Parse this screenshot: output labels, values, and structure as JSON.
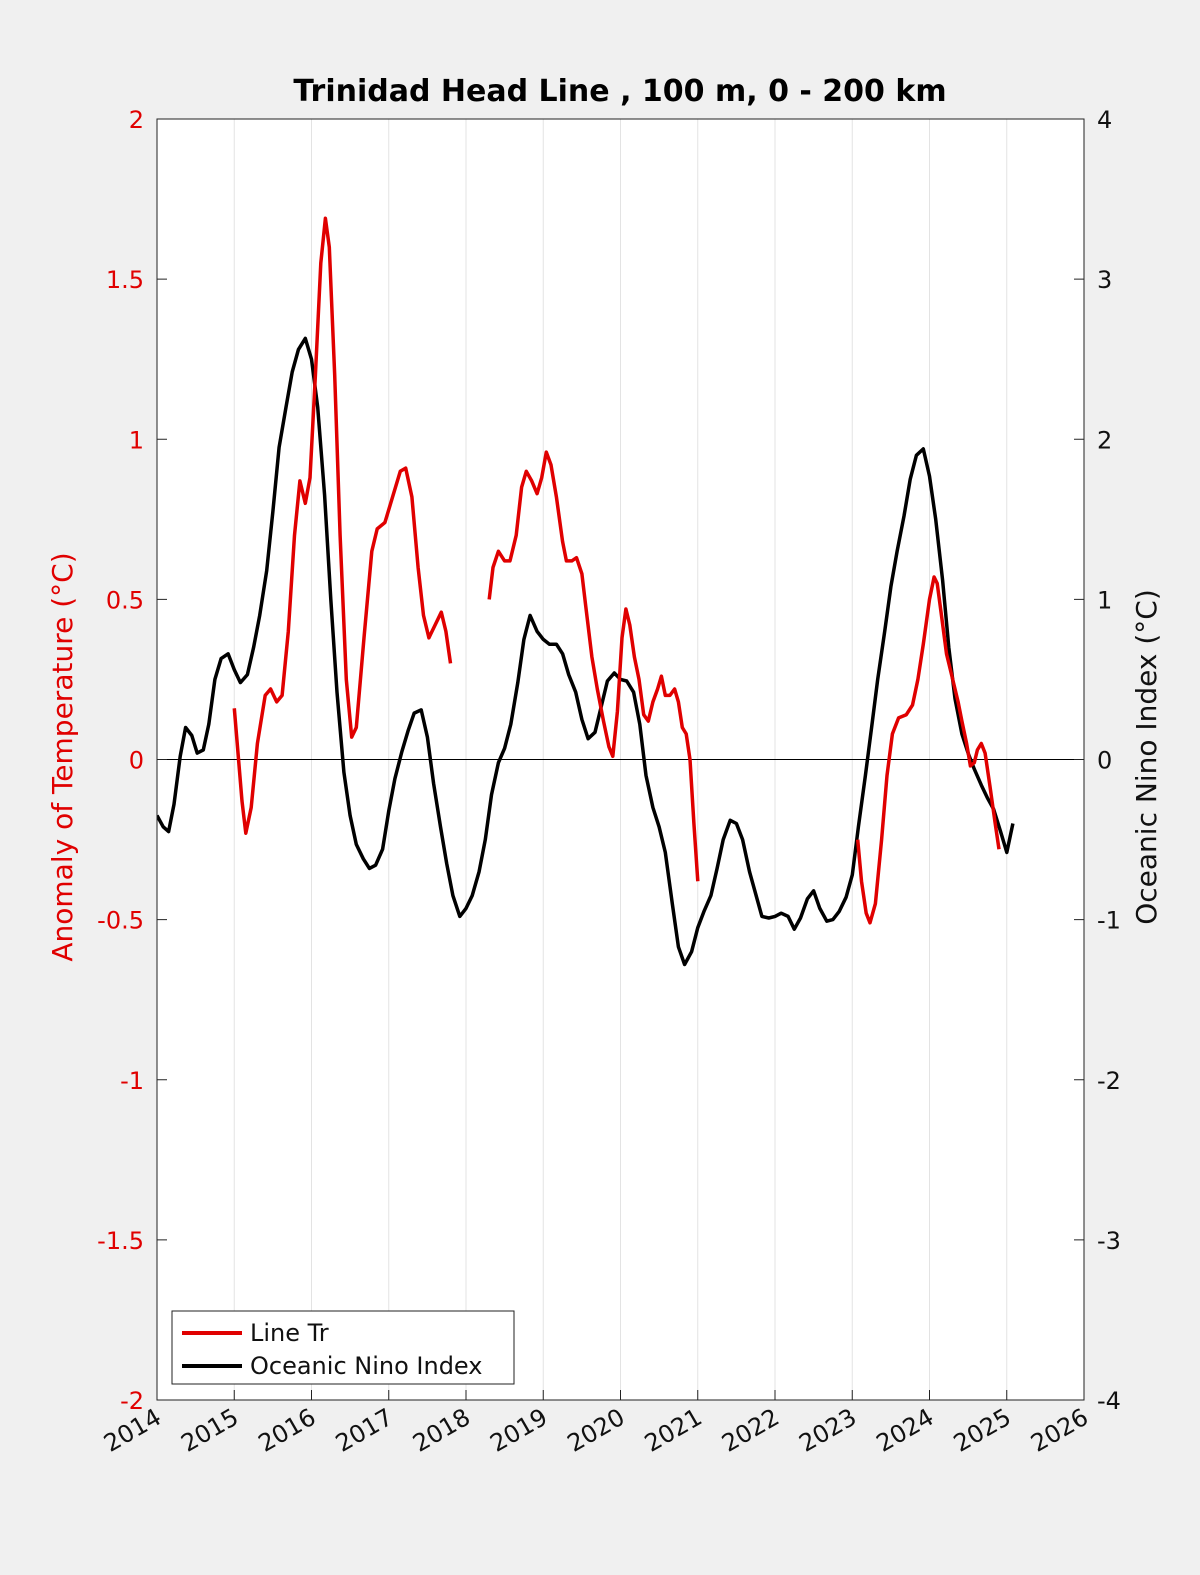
{
  "chart_data": {
    "type": "line",
    "title": "Trinidad Head Line , 100 m, 0 - 200 km",
    "xlabel": "",
    "ylabel_left": "Anomaly of Temperature (°C)",
    "ylabel_right": "Oceanic Nino Index (°C)",
    "xlim": [
      2014,
      2026
    ],
    "ylim_left": [
      -2,
      2
    ],
    "ylim_right": [
      -4,
      4
    ],
    "x_ticks": [
      "2014",
      "2015",
      "2016",
      "2017",
      "2018",
      "2019",
      "2020",
      "2021",
      "2022",
      "2023",
      "2024",
      "2025",
      "2026"
    ],
    "y_ticks_left": [
      "-2",
      "-1.5",
      "-1",
      "-0.5",
      "0",
      "0.5",
      "1",
      "1.5",
      "2"
    ],
    "y_ticks_right": [
      "-4",
      "-3",
      "-2",
      "-1",
      "0",
      "1",
      "2",
      "3",
      "4"
    ],
    "grid": "vertical",
    "zero_line": true,
    "legend_position": "bottom-left",
    "colors": {
      "line_tr": "#e00000",
      "oni": "#000000",
      "left_axis": "#e00000"
    },
    "series": [
      {
        "name": "Line Tr",
        "axis": "left",
        "color": "#e00000",
        "segments": [
          [
            [
              2015.0,
              0.16
            ],
            [
              2015.1,
              -0.13
            ],
            [
              2015.15,
              -0.23
            ],
            [
              2015.22,
              -0.15
            ],
            [
              2015.3,
              0.05
            ],
            [
              2015.4,
              0.2
            ],
            [
              2015.47,
              0.22
            ],
            [
              2015.55,
              0.18
            ],
            [
              2015.62,
              0.2
            ],
            [
              2015.7,
              0.4
            ],
            [
              2015.78,
              0.7
            ],
            [
              2015.85,
              0.87
            ],
            [
              2015.92,
              0.8
            ],
            [
              2015.98,
              0.88
            ],
            [
              2016.05,
              1.2
            ],
            [
              2016.12,
              1.55
            ],
            [
              2016.18,
              1.69
            ],
            [
              2016.23,
              1.6
            ],
            [
              2016.3,
              1.2
            ],
            [
              2016.37,
              0.7
            ],
            [
              2016.45,
              0.25
            ],
            [
              2016.52,
              0.07
            ],
            [
              2016.58,
              0.1
            ],
            [
              2016.68,
              0.38
            ],
            [
              2016.78,
              0.65
            ],
            [
              2016.85,
              0.72
            ],
            [
              2016.95,
              0.74
            ],
            [
              2017.05,
              0.82
            ],
            [
              2017.15,
              0.9
            ],
            [
              2017.22,
              0.91
            ],
            [
              2017.3,
              0.82
            ],
            [
              2017.38,
              0.6
            ],
            [
              2017.45,
              0.45
            ],
            [
              2017.52,
              0.38
            ],
            [
              2017.6,
              0.42
            ],
            [
              2017.68,
              0.46
            ],
            [
              2017.74,
              0.4
            ],
            [
              2017.8,
              0.3
            ]
          ],
          [
            [
              2018.3,
              0.5
            ],
            [
              2018.35,
              0.6
            ],
            [
              2018.42,
              0.65
            ],
            [
              2018.5,
              0.62
            ],
            [
              2018.57,
              0.62
            ],
            [
              2018.65,
              0.7
            ],
            [
              2018.72,
              0.85
            ],
            [
              2018.78,
              0.9
            ],
            [
              2018.85,
              0.87
            ],
            [
              2018.92,
              0.83
            ],
            [
              2018.98,
              0.88
            ],
            [
              2019.04,
              0.96
            ],
            [
              2019.1,
              0.92
            ],
            [
              2019.17,
              0.82
            ],
            [
              2019.25,
              0.68
            ],
            [
              2019.3,
              0.62
            ],
            [
              2019.37,
              0.62
            ],
            [
              2019.43,
              0.63
            ],
            [
              2019.5,
              0.58
            ],
            [
              2019.55,
              0.48
            ],
            [
              2019.63,
              0.32
            ],
            [
              2019.7,
              0.22
            ],
            [
              2019.78,
              0.12
            ],
            [
              2019.85,
              0.04
            ],
            [
              2019.9,
              0.01
            ],
            [
              2019.96,
              0.15
            ],
            [
              2020.02,
              0.38
            ],
            [
              2020.07,
              0.47
            ],
            [
              2020.12,
              0.42
            ],
            [
              2020.18,
              0.32
            ],
            [
              2020.24,
              0.25
            ],
            [
              2020.3,
              0.14
            ],
            [
              2020.36,
              0.12
            ],
            [
              2020.42,
              0.18
            ],
            [
              2020.48,
              0.22
            ],
            [
              2020.53,
              0.26
            ],
            [
              2020.58,
              0.2
            ],
            [
              2020.64,
              0.2
            ],
            [
              2020.7,
              0.22
            ],
            [
              2020.75,
              0.18
            ],
            [
              2020.8,
              0.1
            ],
            [
              2020.85,
              0.08
            ],
            [
              2020.9,
              0.0
            ],
            [
              2020.95,
              -0.2
            ],
            [
              2021.0,
              -0.38
            ]
          ],
          [
            [
              2023.07,
              -0.25
            ],
            [
              2023.12,
              -0.38
            ],
            [
              2023.18,
              -0.48
            ],
            [
              2023.23,
              -0.51
            ],
            [
              2023.3,
              -0.45
            ],
            [
              2023.38,
              -0.25
            ],
            [
              2023.45,
              -0.05
            ],
            [
              2023.52,
              0.08
            ],
            [
              2023.6,
              0.13
            ],
            [
              2023.7,
              0.14
            ],
            [
              2023.78,
              0.17
            ],
            [
              2023.85,
              0.25
            ],
            [
              2023.92,
              0.36
            ],
            [
              2024.0,
              0.5
            ],
            [
              2024.06,
              0.57
            ],
            [
              2024.1,
              0.55
            ],
            [
              2024.16,
              0.44
            ],
            [
              2024.22,
              0.33
            ],
            [
              2024.3,
              0.25
            ],
            [
              2024.37,
              0.18
            ],
            [
              2024.42,
              0.12
            ],
            [
              2024.48,
              0.05
            ],
            [
              2024.53,
              -0.02
            ],
            [
              2024.58,
              -0.01
            ],
            [
              2024.62,
              0.03
            ],
            [
              2024.67,
              0.05
            ],
            [
              2024.72,
              0.02
            ],
            [
              2024.78,
              -0.08
            ],
            [
              2024.85,
              -0.2
            ],
            [
              2024.9,
              -0.28
            ]
          ]
        ]
      },
      {
        "name": "Oceanic Nino Index",
        "axis": "right",
        "color": "#000000",
        "points": [
          [
            2014.0,
            -0.35
          ],
          [
            2014.08,
            -0.42
          ],
          [
            2014.15,
            -0.45
          ],
          [
            2014.22,
            -0.28
          ],
          [
            2014.3,
            0.02
          ],
          [
            2014.37,
            0.2
          ],
          [
            2014.45,
            0.15
          ],
          [
            2014.52,
            0.04
          ],
          [
            2014.6,
            0.06
          ],
          [
            2014.67,
            0.22
          ],
          [
            2014.75,
            0.5
          ],
          [
            2014.83,
            0.63
          ],
          [
            2014.92,
            0.66
          ],
          [
            2015.0,
            0.56
          ],
          [
            2015.08,
            0.48
          ],
          [
            2015.17,
            0.53
          ],
          [
            2015.25,
            0.7
          ],
          [
            2015.33,
            0.9
          ],
          [
            2015.42,
            1.18
          ],
          [
            2015.5,
            1.55
          ],
          [
            2015.58,
            1.95
          ],
          [
            2015.67,
            2.2
          ],
          [
            2015.75,
            2.42
          ],
          [
            2015.83,
            2.56
          ],
          [
            2015.92,
            2.63
          ],
          [
            2016.0,
            2.5
          ],
          [
            2016.08,
            2.2
          ],
          [
            2016.17,
            1.65
          ],
          [
            2016.25,
            1.0
          ],
          [
            2016.33,
            0.42
          ],
          [
            2016.42,
            -0.08
          ],
          [
            2016.5,
            -0.35
          ],
          [
            2016.58,
            -0.53
          ],
          [
            2016.67,
            -0.62
          ],
          [
            2016.75,
            -0.68
          ],
          [
            2016.83,
            -0.66
          ],
          [
            2016.92,
            -0.56
          ],
          [
            2017.0,
            -0.32
          ],
          [
            2017.08,
            -0.12
          ],
          [
            2017.17,
            0.05
          ],
          [
            2017.25,
            0.18
          ],
          [
            2017.33,
            0.29
          ],
          [
            2017.42,
            0.31
          ],
          [
            2017.5,
            0.14
          ],
          [
            2017.58,
            -0.15
          ],
          [
            2017.67,
            -0.42
          ],
          [
            2017.75,
            -0.65
          ],
          [
            2017.83,
            -0.85
          ],
          [
            2017.92,
            -0.98
          ],
          [
            2018.0,
            -0.93
          ],
          [
            2018.08,
            -0.85
          ],
          [
            2018.17,
            -0.7
          ],
          [
            2018.25,
            -0.5
          ],
          [
            2018.33,
            -0.22
          ],
          [
            2018.42,
            -0.02
          ],
          [
            2018.5,
            0.07
          ],
          [
            2018.58,
            0.22
          ],
          [
            2018.67,
            0.48
          ],
          [
            2018.75,
            0.75
          ],
          [
            2018.83,
            0.9
          ],
          [
            2018.92,
            0.8
          ],
          [
            2019.0,
            0.75
          ],
          [
            2019.08,
            0.72
          ],
          [
            2019.17,
            0.72
          ],
          [
            2019.25,
            0.66
          ],
          [
            2019.33,
            0.53
          ],
          [
            2019.42,
            0.42
          ],
          [
            2019.5,
            0.25
          ],
          [
            2019.58,
            0.13
          ],
          [
            2019.67,
            0.17
          ],
          [
            2019.75,
            0.33
          ],
          [
            2019.83,
            0.49
          ],
          [
            2019.92,
            0.54
          ],
          [
            2020.0,
            0.5
          ],
          [
            2020.08,
            0.49
          ],
          [
            2020.17,
            0.42
          ],
          [
            2020.25,
            0.22
          ],
          [
            2020.33,
            -0.1
          ],
          [
            2020.42,
            -0.3
          ],
          [
            2020.5,
            -0.42
          ],
          [
            2020.58,
            -0.58
          ],
          [
            2020.67,
            -0.9
          ],
          [
            2020.75,
            -1.17
          ],
          [
            2020.83,
            -1.28
          ],
          [
            2020.92,
            -1.2
          ],
          [
            2021.0,
            -1.05
          ],
          [
            2021.08,
            -0.95
          ],
          [
            2021.17,
            -0.85
          ],
          [
            2021.25,
            -0.68
          ],
          [
            2021.33,
            -0.5
          ],
          [
            2021.42,
            -0.38
          ],
          [
            2021.5,
            -0.4
          ],
          [
            2021.58,
            -0.5
          ],
          [
            2021.67,
            -0.7
          ],
          [
            2021.75,
            -0.84
          ],
          [
            2021.83,
            -0.98
          ],
          [
            2021.92,
            -0.99
          ],
          [
            2022.0,
            -0.98
          ],
          [
            2022.08,
            -0.96
          ],
          [
            2022.17,
            -0.98
          ],
          [
            2022.25,
            -1.06
          ],
          [
            2022.33,
            -0.99
          ],
          [
            2022.42,
            -0.87
          ],
          [
            2022.5,
            -0.82
          ],
          [
            2022.58,
            -0.93
          ],
          [
            2022.67,
            -1.01
          ],
          [
            2022.75,
            -1.0
          ],
          [
            2022.83,
            -0.95
          ],
          [
            2022.92,
            -0.86
          ],
          [
            2023.0,
            -0.72
          ],
          [
            2023.08,
            -0.42
          ],
          [
            2023.17,
            -0.1
          ],
          [
            2023.25,
            0.2
          ],
          [
            2023.33,
            0.5
          ],
          [
            2023.42,
            0.8
          ],
          [
            2023.5,
            1.08
          ],
          [
            2023.58,
            1.3
          ],
          [
            2023.67,
            1.52
          ],
          [
            2023.75,
            1.75
          ],
          [
            2023.83,
            1.9
          ],
          [
            2023.92,
            1.94
          ],
          [
            2024.0,
            1.77
          ],
          [
            2024.08,
            1.5
          ],
          [
            2024.17,
            1.12
          ],
          [
            2024.25,
            0.7
          ],
          [
            2024.33,
            0.38
          ],
          [
            2024.42,
            0.16
          ],
          [
            2024.5,
            0.04
          ],
          [
            2024.58,
            -0.06
          ],
          [
            2024.67,
            -0.16
          ],
          [
            2024.75,
            -0.24
          ],
          [
            2024.83,
            -0.31
          ],
          [
            2024.92,
            -0.45
          ],
          [
            2025.0,
            -0.58
          ],
          [
            2025.08,
            -0.4
          ]
        ]
      }
    ]
  }
}
